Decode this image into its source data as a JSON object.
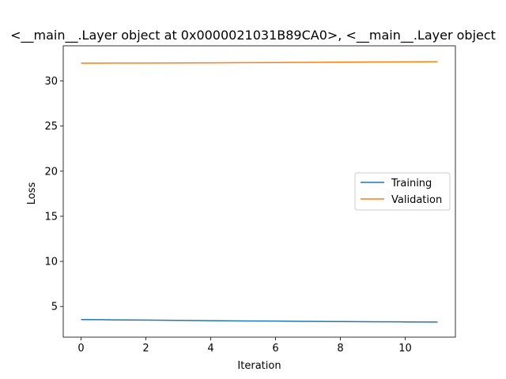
{
  "chart_data": {
    "type": "line",
    "title": "<__main__.Layer object at 0x0000021031B89CA0>, <__main__.Layer object",
    "xlabel": "Iteration",
    "ylabel": "Loss",
    "xlim": [
      -0.55,
      11.55
    ],
    "ylim": [
      1.6,
      33.9
    ],
    "xticks": [
      0,
      2,
      4,
      6,
      8,
      10
    ],
    "yticks": [
      5,
      10,
      15,
      20,
      25,
      30
    ],
    "grid": false,
    "legend": {
      "placement": "center-right"
    },
    "x": [
      0,
      1,
      2,
      3,
      4,
      5,
      6,
      7,
      8,
      9,
      10,
      11
    ],
    "series": [
      {
        "name": "Training",
        "color": "#1f77b4",
        "values": [
          3.55,
          3.52,
          3.49,
          3.46,
          3.43,
          3.4,
          3.38,
          3.35,
          3.33,
          3.31,
          3.29,
          3.27
        ]
      },
      {
        "name": "Validation",
        "color": "#ff7f0e",
        "values": [
          31.97,
          31.98,
          31.99,
          32.0,
          32.01,
          32.03,
          32.04,
          32.06,
          32.08,
          32.1,
          32.12,
          32.14
        ]
      }
    ]
  }
}
